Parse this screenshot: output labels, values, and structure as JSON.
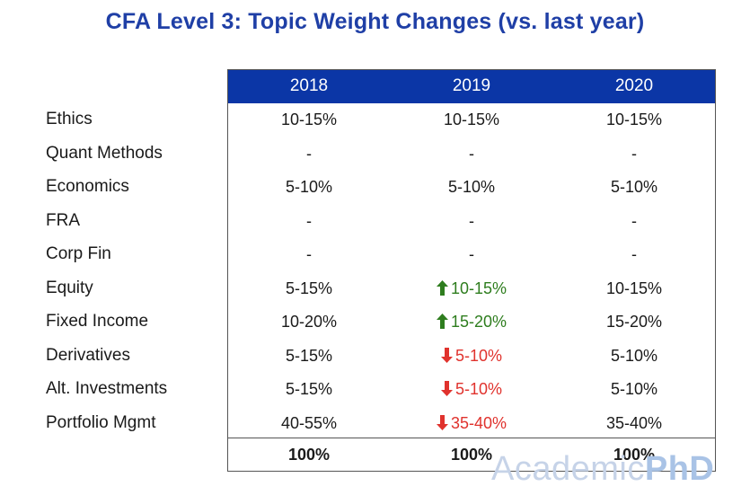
{
  "title": "CFA Level 3: Topic Weight Changes (vs. last year)",
  "table": {
    "years": [
      "2018",
      "2019",
      "2020"
    ],
    "rows": [
      {
        "label": "Ethics",
        "cells": [
          {
            "text": "10-15%"
          },
          {
            "text": "10-15%"
          },
          {
            "text": "10-15%"
          }
        ]
      },
      {
        "label": "Quant Methods",
        "cells": [
          {
            "text": "-"
          },
          {
            "text": "-"
          },
          {
            "text": "-"
          }
        ]
      },
      {
        "label": "Economics",
        "cells": [
          {
            "text": "5-10%"
          },
          {
            "text": "5-10%"
          },
          {
            "text": "5-10%"
          }
        ]
      },
      {
        "label": "FRA",
        "cells": [
          {
            "text": "-"
          },
          {
            "text": "-"
          },
          {
            "text": "-"
          }
        ]
      },
      {
        "label": "Corp Fin",
        "cells": [
          {
            "text": "-"
          },
          {
            "text": "-"
          },
          {
            "text": "-"
          }
        ]
      },
      {
        "label": "Equity",
        "cells": [
          {
            "text": "5-15%"
          },
          {
            "text": "10-15%",
            "change": "up"
          },
          {
            "text": "10-15%"
          }
        ]
      },
      {
        "label": "Fixed Income",
        "cells": [
          {
            "text": "10-20%"
          },
          {
            "text": "15-20%",
            "change": "up"
          },
          {
            "text": "15-20%"
          }
        ]
      },
      {
        "label": "Derivatives",
        "cells": [
          {
            "text": "5-15%"
          },
          {
            "text": "5-10%",
            "change": "down"
          },
          {
            "text": "5-10%"
          }
        ]
      },
      {
        "label": "Alt. Investments",
        "cells": [
          {
            "text": "5-15%"
          },
          {
            "text": "5-10%",
            "change": "down"
          },
          {
            "text": "5-10%"
          }
        ]
      },
      {
        "label": "Portfolio Mgmt",
        "cells": [
          {
            "text": "40-55%"
          },
          {
            "text": "35-40%",
            "change": "down"
          },
          {
            "text": "35-40%"
          }
        ]
      }
    ],
    "totals": [
      "100%",
      "100%",
      "100%"
    ]
  },
  "colors": {
    "title": "#1f3fa6",
    "header_band": "#0b36a6",
    "increase": "#2e7d1e",
    "decrease": "#e0322d"
  },
  "icons": {
    "increase": "arrow-up-icon",
    "decrease": "arrow-down-icon"
  },
  "watermark": {
    "light": "Academic",
    "bold": "PhD"
  }
}
